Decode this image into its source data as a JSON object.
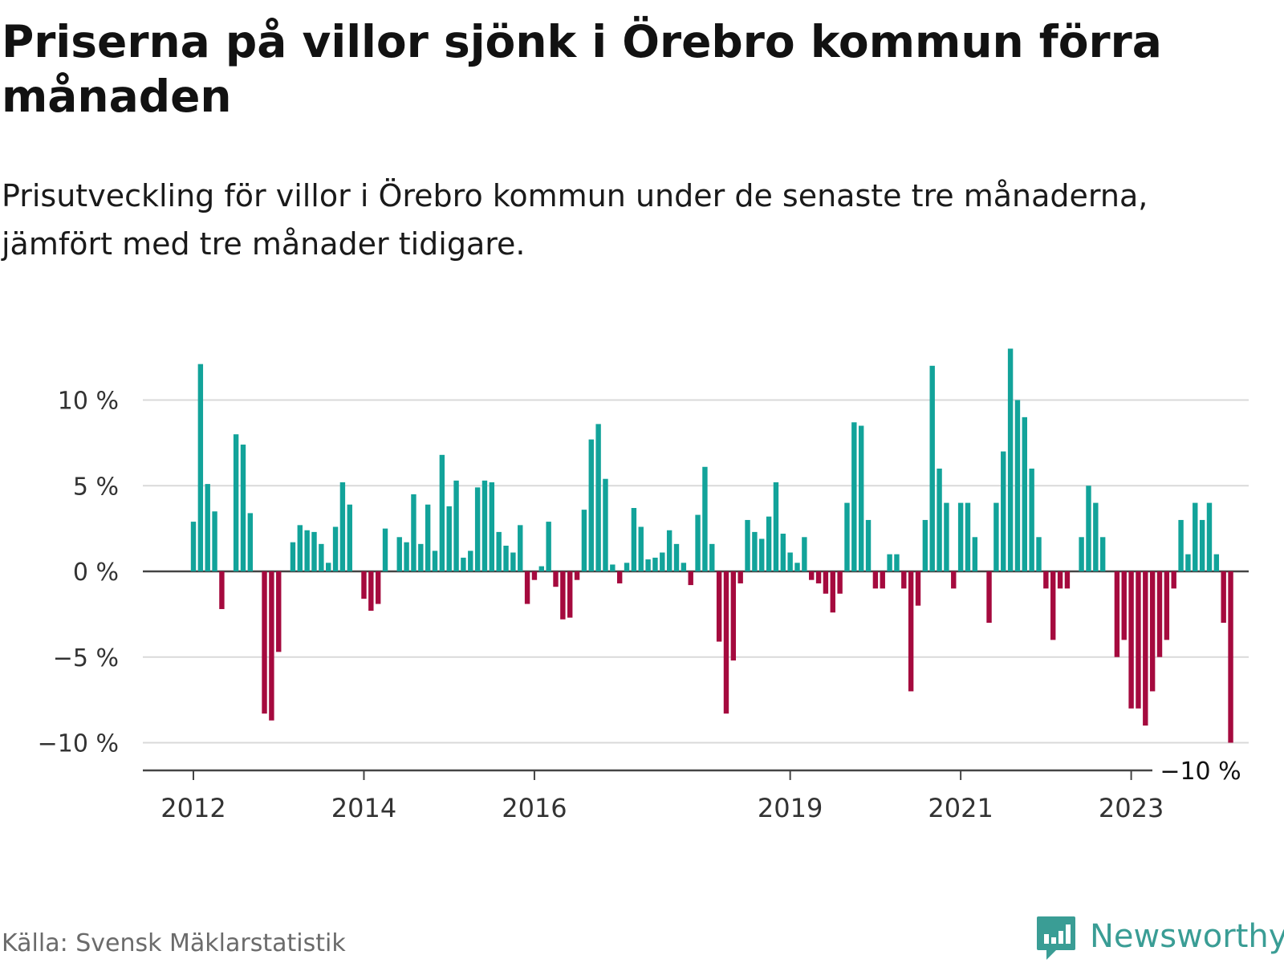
{
  "title": "Priserna på villor sjönk i Örebro kommun förra månaden",
  "subtitle": "Prisutveckling för villor i Örebro kommun under de senaste tre månaderna, jämfört med tre månader tidigare.",
  "source": "Källa: Svensk Mäklarstatistik",
  "brand": {
    "name": "Newsworthy",
    "icon": "newsworthy-logo-icon"
  },
  "colors": {
    "positive": "#12a39a",
    "negative": "#a50a3e",
    "grid": "#d9d9d9",
    "axis": "#444444",
    "brand": "#3a9d95"
  },
  "chart_data": {
    "type": "bar",
    "start": "2012-01",
    "ylim": [
      -11.5,
      13.5
    ],
    "yticks": [
      {
        "value": 10,
        "label": "10 %"
      },
      {
        "value": 5,
        "label": "5 %"
      },
      {
        "value": 0,
        "label": "0 %"
      },
      {
        "value": -5,
        "label": "−5 %"
      },
      {
        "value": -10,
        "label": "−10 %"
      }
    ],
    "xticks": [
      {
        "date": "2012-01",
        "label": "2012"
      },
      {
        "date": "2014-01",
        "label": "2014"
      },
      {
        "date": "2016-01",
        "label": "2016"
      },
      {
        "date": "2019-01",
        "label": "2019"
      },
      {
        "date": "2021-01",
        "label": "2021"
      },
      {
        "date": "2023-01",
        "label": "2023"
      }
    ],
    "last_label": "−10 %",
    "values": [
      2.9,
      12.1,
      5.1,
      3.5,
      -2.2,
      0,
      8.0,
      7.4,
      3.4,
      0,
      -8.3,
      -8.7,
      -4.7,
      0,
      1.7,
      2.7,
      2.4,
      2.3,
      1.6,
      0.5,
      2.6,
      5.2,
      3.9,
      0,
      -1.6,
      -2.3,
      -1.9,
      2.5,
      0,
      2.0,
      1.7,
      4.5,
      1.6,
      3.9,
      1.2,
      6.8,
      3.8,
      5.3,
      0.8,
      1.2,
      4.9,
      5.3,
      5.2,
      2.3,
      1.5,
      1.1,
      2.7,
      -1.9,
      -0.5,
      0.3,
      2.9,
      -0.9,
      -2.8,
      -2.7,
      -0.5,
      3.6,
      7.7,
      8.6,
      5.4,
      0.4,
      -0.7,
      0.5,
      3.7,
      2.6,
      0.7,
      0.8,
      1.1,
      2.4,
      1.6,
      0.5,
      -0.8,
      3.3,
      6.1,
      1.6,
      -4.1,
      -8.3,
      -5.2,
      -0.7,
      3.0,
      2.3,
      1.9,
      3.2,
      5.2,
      2.2,
      1.1,
      0.5,
      2.0,
      -0.5,
      -0.7,
      -1.3,
      -2.4,
      -1.3,
      4.0,
      8.7,
      8.5,
      3.0,
      -1.0,
      -1.0,
      1.0,
      1.0,
      -1.0,
      -7.0,
      -2.0,
      3.0,
      12.0,
      6.0,
      4.0,
      -1.0,
      4.0,
      4.0,
      2.0,
      0,
      -3.0,
      4.0,
      7.0,
      13.0,
      10.0,
      9.0,
      6.0,
      2.0,
      -1.0,
      -4.0,
      -1.0,
      -1.0,
      0,
      2.0,
      5.0,
      4.0,
      2.0,
      0,
      -5.0,
      -4.0,
      -8.0,
      -8.0,
      -9.0,
      -7.0,
      -5.0,
      -4.0,
      -1.0,
      3.0,
      1.0,
      4.0,
      3.0,
      4.0,
      1.0,
      -3.0,
      -10.0
    ]
  }
}
